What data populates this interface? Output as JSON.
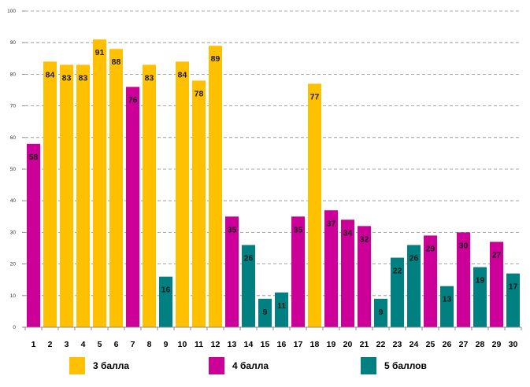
{
  "chart_data": {
    "type": "bar",
    "categories": [
      "1",
      "2",
      "3",
      "4",
      "5",
      "6",
      "7",
      "8",
      "9",
      "10",
      "11",
      "12",
      "13",
      "14",
      "15",
      "16",
      "17",
      "18",
      "19",
      "20",
      "21",
      "22",
      "23",
      "24",
      "25",
      "26",
      "27",
      "28",
      "29",
      "30"
    ],
    "values": [
      58,
      84,
      83,
      83,
      91,
      88,
      76,
      83,
      16,
      84,
      78,
      89,
      35,
      26,
      9,
      11,
      35,
      77,
      37,
      34,
      32,
      9,
      22,
      26,
      29,
      13,
      30,
      19,
      27,
      17
    ],
    "groups": [
      "4 балла",
      "3 балла",
      "3 балла",
      "3 балла",
      "3 балла",
      "3 балла",
      "4 балла",
      "3 балла",
      "5 баллов",
      "3 балла",
      "3 балла",
      "3 балла",
      "4 балла",
      "5 баллов",
      "5 баллов",
      "5 баллов",
      "4 балла",
      "3 балла",
      "4 балла",
      "4 балла",
      "4 балла",
      "5 баллов",
      "5 баллов",
      "5 баллов",
      "4 балла",
      "5 баллов",
      "4 балла",
      "5 баллов",
      "4 балла",
      "5 баллов"
    ],
    "ylim": [
      0,
      100
    ],
    "yticks": [
      0,
      10,
      20,
      30,
      40,
      50,
      60,
      70,
      80,
      90,
      100
    ],
    "grid": true,
    "title": "",
    "xlabel": "",
    "ylabel": "",
    "legend_position": "bottom"
  },
  "legend": [
    {
      "label": "3 балла",
      "color": "#FFC000"
    },
    {
      "label": "4 балла",
      "color": "#CC0099"
    },
    {
      "label": "5 баллов",
      "color": "#008080"
    }
  ]
}
